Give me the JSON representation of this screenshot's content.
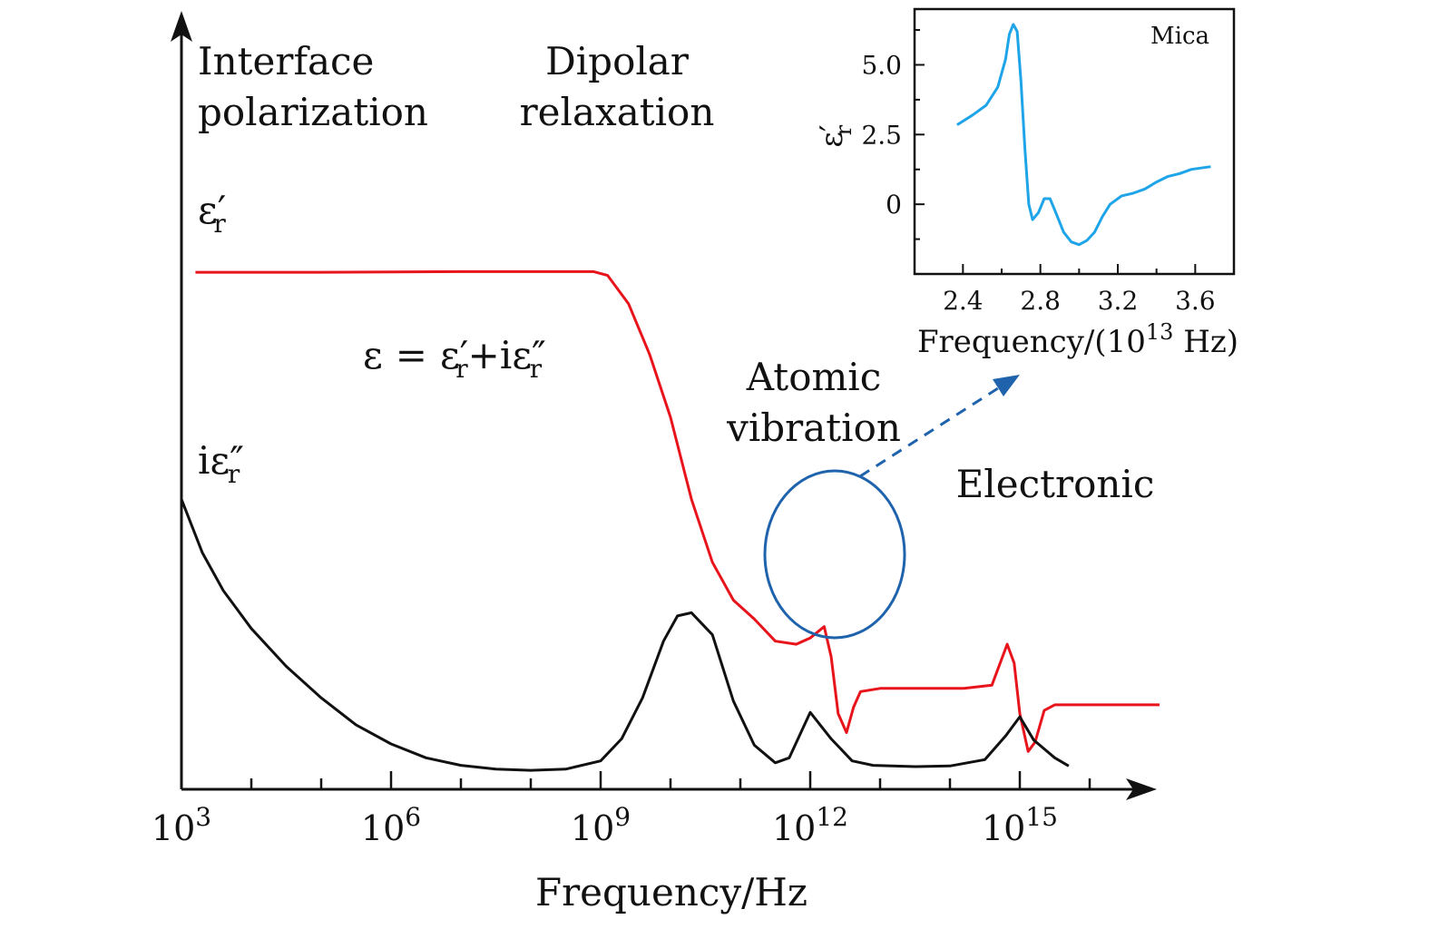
{
  "colors": {
    "real": "#e8141c",
    "imag": "#111111",
    "inset": "#1ea4e8",
    "highlight": "#1f63ad",
    "axis": "#111111"
  },
  "chart_data": [
    {
      "type": "line",
      "xscale": "log",
      "xlabel": "Frequency/Hz",
      "xlim": [
        1000,
        100000000000000000
      ],
      "ylim": [
        0,
        10
      ],
      "x_ticks": [
        {
          "exp": 3,
          "label": "10",
          "sup": "3"
        },
        {
          "exp": 6,
          "label": "10",
          "sup": "6"
        },
        {
          "exp": 9,
          "label": "10",
          "sup": "9"
        },
        {
          "exp": 12,
          "label": "10",
          "sup": "12"
        },
        {
          "exp": 15,
          "label": "10",
          "sup": "15"
        }
      ],
      "series": [
        {
          "name": "ε′r",
          "role": "real",
          "points": [
            [
              3.2,
              8.2
            ],
            [
              5.0,
              8.2
            ],
            [
              7.0,
              8.21
            ],
            [
              8.9,
              8.21
            ],
            [
              9.1,
              8.15
            ],
            [
              9.4,
              7.7
            ],
            [
              9.7,
              6.9
            ],
            [
              10.0,
              5.9
            ],
            [
              10.3,
              4.6
            ],
            [
              10.6,
              3.6
            ],
            [
              10.9,
              3.0
            ],
            [
              11.2,
              2.7
            ],
            [
              11.5,
              2.35
            ],
            [
              11.8,
              2.3
            ],
            [
              12.0,
              2.4
            ],
            [
              12.2,
              2.58
            ],
            [
              12.3,
              2.1
            ],
            [
              12.4,
              1.2
            ],
            [
              12.52,
              0.9
            ],
            [
              12.62,
              1.3
            ],
            [
              12.72,
              1.55
            ],
            [
              13.0,
              1.6
            ],
            [
              13.8,
              1.6
            ],
            [
              14.2,
              1.6
            ],
            [
              14.6,
              1.65
            ],
            [
              14.82,
              2.3
            ],
            [
              14.92,
              2.0
            ],
            [
              15.0,
              1.2
            ],
            [
              15.12,
              0.6
            ],
            [
              15.22,
              0.75
            ],
            [
              15.35,
              1.25
            ],
            [
              15.5,
              1.34
            ],
            [
              16.0,
              1.34
            ],
            [
              17.0,
              1.34
            ]
          ]
        },
        {
          "name": "iε″r",
          "role": "imag",
          "points": [
            [
              3.0,
              4.6
            ],
            [
              3.3,
              3.75
            ],
            [
              3.6,
              3.15
            ],
            [
              4.0,
              2.55
            ],
            [
              4.5,
              1.95
            ],
            [
              5.0,
              1.45
            ],
            [
              5.5,
              1.02
            ],
            [
              6.0,
              0.72
            ],
            [
              6.5,
              0.5
            ],
            [
              7.0,
              0.38
            ],
            [
              7.5,
              0.32
            ],
            [
              8.0,
              0.3
            ],
            [
              8.5,
              0.32
            ],
            [
              9.0,
              0.45
            ],
            [
              9.3,
              0.8
            ],
            [
              9.6,
              1.45
            ],
            [
              9.9,
              2.35
            ],
            [
              10.1,
              2.75
            ],
            [
              10.3,
              2.8
            ],
            [
              10.6,
              2.45
            ],
            [
              10.9,
              1.4
            ],
            [
              11.2,
              0.7
            ],
            [
              11.5,
              0.42
            ],
            [
              11.7,
              0.5
            ],
            [
              12.0,
              1.22
            ],
            [
              12.3,
              0.8
            ],
            [
              12.6,
              0.45
            ],
            [
              12.9,
              0.38
            ],
            [
              13.5,
              0.36
            ],
            [
              14.0,
              0.37
            ],
            [
              14.5,
              0.47
            ],
            [
              14.8,
              0.85
            ],
            [
              15.0,
              1.15
            ],
            [
              15.2,
              0.78
            ],
            [
              15.5,
              0.5
            ],
            [
              15.7,
              0.37
            ]
          ]
        }
      ],
      "annotations": [
        {
          "lines": [
            "Interface",
            "polarization"
          ]
        },
        {
          "lines": [
            "Dipolar",
            "relaxation"
          ]
        },
        {
          "lines": [
            "Atomic",
            "vibration"
          ]
        },
        {
          "lines": [
            "Electronic"
          ]
        }
      ],
      "series_labels": {
        "real": {
          "base": "ε",
          "prime": "′",
          "sub": "r"
        },
        "imag": {
          "prefix": "i",
          "base": "ε",
          "prime": "″",
          "sub": "r"
        }
      },
      "equation": {
        "lhs": "ε",
        "eq": "=",
        "t1": "ε",
        "t1_prime": "′",
        "t1_sub": "r",
        "plus": "+",
        "i": "i",
        "t2": "ε",
        "t2_prime": "″",
        "t2_sub": "r"
      }
    },
    {
      "type": "line",
      "inset": true,
      "label": "Mica",
      "xlabel_main": "Frequency/(10",
      "xlabel_sup": "13",
      "xlabel_end": " Hz)",
      "ylabel": {
        "base": "ε",
        "prime": "′",
        "sub": "r"
      },
      "xlim": [
        2.15,
        3.8
      ],
      "ylim": [
        -2.5,
        7.0
      ],
      "x_ticks": [
        2.4,
        2.8,
        3.2,
        3.6
      ],
      "x_tick_labels": [
        "2.4",
        "2.8",
        "3.2",
        "3.6"
      ],
      "y_ticks": [
        0,
        2.5,
        5.0
      ],
      "y_tick_labels": [
        "0",
        "2.5",
        "5.0"
      ],
      "series": [
        {
          "name": "Mica",
          "points": [
            [
              2.37,
              2.85
            ],
            [
              2.45,
              3.2
            ],
            [
              2.52,
              3.55
            ],
            [
              2.58,
              4.2
            ],
            [
              2.62,
              5.2
            ],
            [
              2.64,
              6.1
            ],
            [
              2.66,
              6.45
            ],
            [
              2.68,
              6.2
            ],
            [
              2.7,
              4.4
            ],
            [
              2.72,
              2.0
            ],
            [
              2.74,
              0.0
            ],
            [
              2.76,
              -0.55
            ],
            [
              2.79,
              -0.3
            ],
            [
              2.82,
              0.2
            ],
            [
              2.85,
              0.2
            ],
            [
              2.88,
              -0.3
            ],
            [
              2.92,
              -1.0
            ],
            [
              2.96,
              -1.35
            ],
            [
              3.0,
              -1.45
            ],
            [
              3.04,
              -1.3
            ],
            [
              3.08,
              -1.0
            ],
            [
              3.12,
              -0.45
            ],
            [
              3.16,
              0.0
            ],
            [
              3.22,
              0.3
            ],
            [
              3.28,
              0.4
            ],
            [
              3.34,
              0.55
            ],
            [
              3.4,
              0.8
            ],
            [
              3.46,
              1.0
            ],
            [
              3.52,
              1.1
            ],
            [
              3.58,
              1.25
            ],
            [
              3.63,
              1.3
            ],
            [
              3.68,
              1.35
            ]
          ]
        }
      ]
    }
  ]
}
